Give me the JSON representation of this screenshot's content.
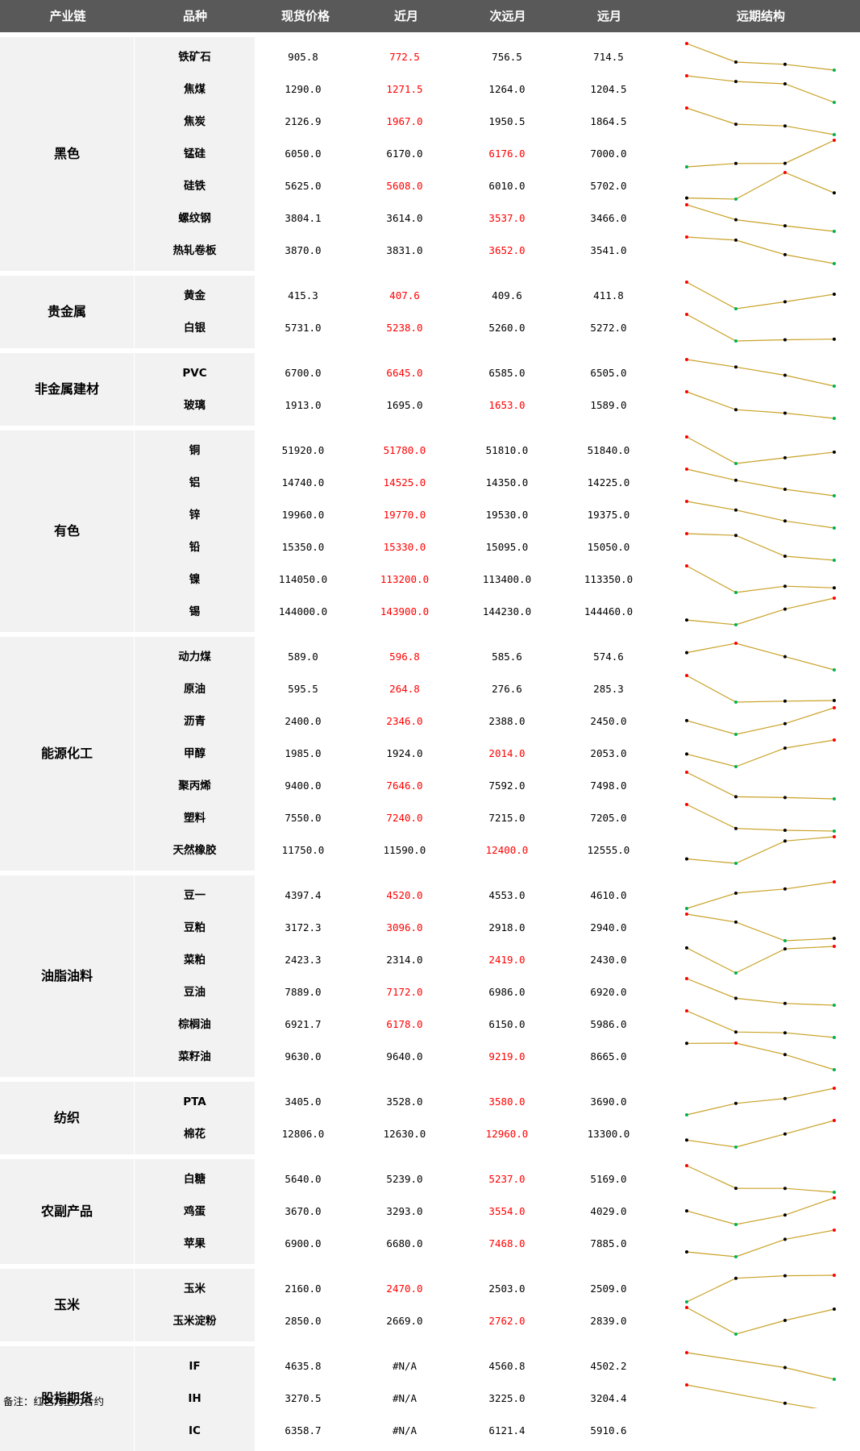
{
  "headers": [
    "产业链",
    "品种",
    "现货价格",
    "近月",
    "次远月",
    "远月",
    "远期结构"
  ],
  "groups": [
    {
      "name": "黑色",
      "products": [
        {
          "name": "铁矿石",
          "values": [
            "905.8",
            "772.5",
            "756.5",
            "714.5"
          ],
          "main": "near"
        },
        {
          "name": "焦煤",
          "values": [
            "1290.0",
            "1271.5",
            "1264.0",
            "1204.5"
          ],
          "main": "near"
        },
        {
          "name": "焦炭",
          "values": [
            "2126.9",
            "1967.0",
            "1950.5",
            "1864.5"
          ],
          "main": "near"
        },
        {
          "name": "锰硅",
          "values": [
            "6050.0",
            "6170.0",
            "6176.0",
            "7000.0"
          ],
          "main": "next"
        },
        {
          "name": "硅铁",
          "values": [
            "5625.0",
            "5608.0",
            "6010.0",
            "5702.0"
          ],
          "main": "near"
        },
        {
          "name": "螺纹钢",
          "values": [
            "3804.1",
            "3614.0",
            "3537.0",
            "3466.0"
          ],
          "main": "next"
        },
        {
          "name": "热轧卷板",
          "values": [
            "3870.0",
            "3831.0",
            "3652.0",
            "3541.0"
          ],
          "main": "next"
        }
      ]
    },
    {
      "name": "贵金属",
      "products": [
        {
          "name": "黄金",
          "values": [
            "415.3",
            "407.6",
            "409.6",
            "411.8"
          ],
          "main": "near"
        },
        {
          "name": "白银",
          "values": [
            "5731.0",
            "5238.0",
            "5260.0",
            "5272.0"
          ],
          "main": "near"
        }
      ]
    },
    {
      "name": "非金属建材",
      "products": [
        {
          "name": "PVC",
          "values": [
            "6700.0",
            "6645.0",
            "6585.0",
            "6505.0"
          ],
          "main": "near"
        },
        {
          "name": "玻璃",
          "values": [
            "1913.0",
            "1695.0",
            "1653.0",
            "1589.0"
          ],
          "main": "next"
        }
      ]
    },
    {
      "name": "有色",
      "products": [
        {
          "name": "铜",
          "values": [
            "51920.0",
            "51780.0",
            "51810.0",
            "51840.0"
          ],
          "main": "near"
        },
        {
          "name": "铝",
          "values": [
            "14740.0",
            "14525.0",
            "14350.0",
            "14225.0"
          ],
          "main": "near"
        },
        {
          "name": "锌",
          "values": [
            "19960.0",
            "19770.0",
            "19530.0",
            "19375.0"
          ],
          "main": "near"
        },
        {
          "name": "铅",
          "values": [
            "15350.0",
            "15330.0",
            "15095.0",
            "15050.0"
          ],
          "main": "near"
        },
        {
          "name": "镍",
          "values": [
            "114050.0",
            "113200.0",
            "113400.0",
            "113350.0"
          ],
          "main": "near"
        },
        {
          "name": "锡",
          "values": [
            "144000.0",
            "143900.0",
            "144230.0",
            "144460.0"
          ],
          "main": "near"
        }
      ]
    },
    {
      "name": "能源化工",
      "products": [
        {
          "name": "动力煤",
          "values": [
            "589.0",
            "596.8",
            "585.6",
            "574.6"
          ],
          "main": "near"
        },
        {
          "name": "原油",
          "values": [
            "595.5",
            "264.8",
            "276.6",
            "285.3"
          ],
          "main": "near"
        },
        {
          "name": "沥青",
          "values": [
            "2400.0",
            "2346.0",
            "2388.0",
            "2450.0"
          ],
          "main": "near"
        },
        {
          "name": "甲醇",
          "values": [
            "1985.0",
            "1924.0",
            "2014.0",
            "2053.0"
          ],
          "main": "next"
        },
        {
          "name": "聚丙烯",
          "values": [
            "9400.0",
            "7646.0",
            "7592.0",
            "7498.0"
          ],
          "main": "near"
        },
        {
          "name": "塑料",
          "values": [
            "7550.0",
            "7240.0",
            "7215.0",
            "7205.0"
          ],
          "main": "near"
        },
        {
          "name": "天然橡胶",
          "values": [
            "11750.0",
            "11590.0",
            "12400.0",
            "12555.0"
          ],
          "main": "next"
        }
      ]
    },
    {
      "name": "油脂油料",
      "products": [
        {
          "name": "豆一",
          "values": [
            "4397.4",
            "4520.0",
            "4553.0",
            "4610.0"
          ],
          "main": "near"
        },
        {
          "name": "豆粕",
          "values": [
            "3172.3",
            "3096.0",
            "2918.0",
            "2940.0"
          ],
          "main": "near"
        },
        {
          "name": "菜粕",
          "values": [
            "2423.3",
            "2314.0",
            "2419.0",
            "2430.0"
          ],
          "main": "next"
        },
        {
          "name": "豆油",
          "values": [
            "7889.0",
            "7172.0",
            "6986.0",
            "6920.0"
          ],
          "main": "near"
        },
        {
          "name": "棕榈油",
          "values": [
            "6921.7",
            "6178.0",
            "6150.0",
            "5986.0"
          ],
          "main": "near"
        },
        {
          "name": "菜籽油",
          "values": [
            "9630.0",
            "9640.0",
            "9219.0",
            "8665.0"
          ],
          "main": "next"
        }
      ]
    },
    {
      "name": "纺织",
      "products": [
        {
          "name": "PTA",
          "values": [
            "3405.0",
            "3528.0",
            "3580.0",
            "3690.0"
          ],
          "main": "next"
        },
        {
          "name": "棉花",
          "values": [
            "12806.0",
            "12630.0",
            "12960.0",
            "13300.0"
          ],
          "main": "next"
        }
      ]
    },
    {
      "name": "农副产品",
      "products": [
        {
          "name": "白糖",
          "values": [
            "5640.0",
            "5239.0",
            "5237.0",
            "5169.0"
          ],
          "main": "next"
        },
        {
          "name": "鸡蛋",
          "values": [
            "3670.0",
            "3293.0",
            "3554.0",
            "4029.0"
          ],
          "main": "next"
        },
        {
          "name": "苹果",
          "values": [
            "6900.0",
            "6680.0",
            "7468.0",
            "7885.0"
          ],
          "main": "next"
        }
      ]
    },
    {
      "name": "玉米",
      "products": [
        {
          "name": "玉米",
          "values": [
            "2160.0",
            "2470.0",
            "2503.0",
            "2509.0"
          ],
          "main": "near"
        },
        {
          "name": "玉米淀粉",
          "values": [
            "2850.0",
            "2669.0",
            "2762.0",
            "2839.0"
          ],
          "main": "next"
        }
      ]
    },
    {
      "name": "股指期货",
      "products": [
        {
          "name": "IF",
          "values": [
            "4635.8",
            "#N/A",
            "4560.8",
            "4502.2"
          ],
          "main": "none"
        },
        {
          "name": "IH",
          "values": [
            "3270.5",
            "#N/A",
            "3225.0",
            "3204.4"
          ],
          "main": "none"
        },
        {
          "name": "IC",
          "values": [
            "6358.7",
            "#N/A",
            "6121.4",
            "5910.6"
          ],
          "main": "none"
        }
      ]
    }
  ],
  "note": "备注：红色为主力合约",
  "colors": {
    "header_bg": "#595959",
    "group_bg": "#f2f2f2",
    "main_contract": "#ff0000",
    "spark_line": "#c9a227",
    "spark_max": "#ff0000",
    "spark_min": "#00b050",
    "spark_mid": "#000000"
  }
}
